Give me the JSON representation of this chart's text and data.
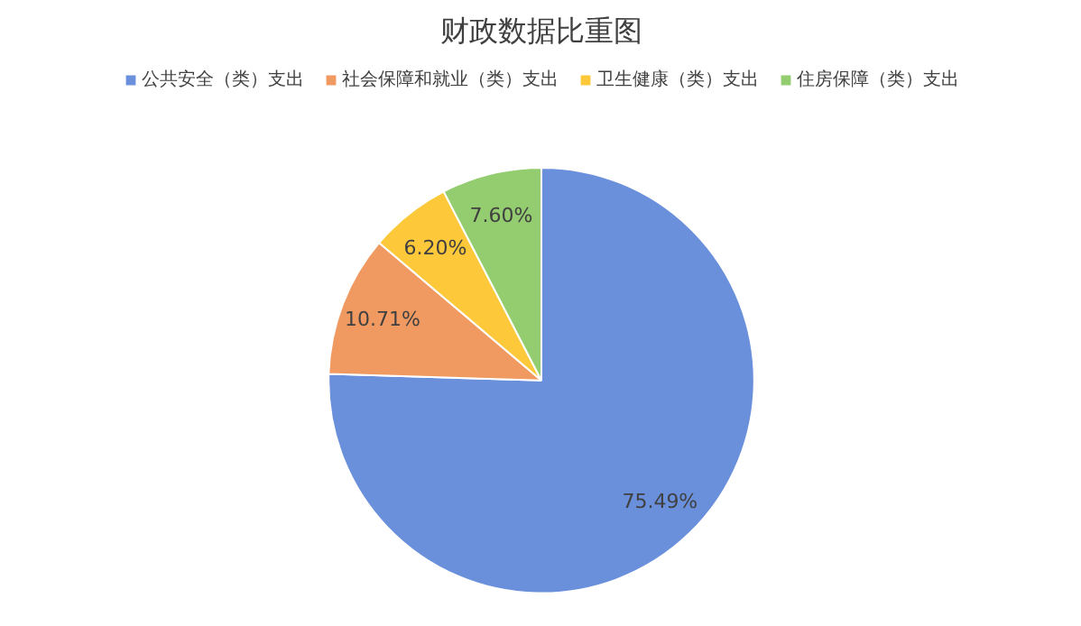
{
  "chart_data": {
    "type": "pie",
    "title": "财政数据比重图",
    "categories": [
      "公共安全（类）支出",
      "社会保障和就业（类）支出",
      "卫生健康（类）支出",
      "住房保障（类）支出"
    ],
    "values": [
      75.49,
      10.71,
      6.2,
      7.6
    ],
    "colors": [
      "#6a90dc",
      "#f09a62",
      "#fdc93a",
      "#93cd70"
    ],
    "value_labels": [
      "75.49%",
      "10.71%",
      "6.20%",
      "7.60%"
    ],
    "legend": "top"
  }
}
